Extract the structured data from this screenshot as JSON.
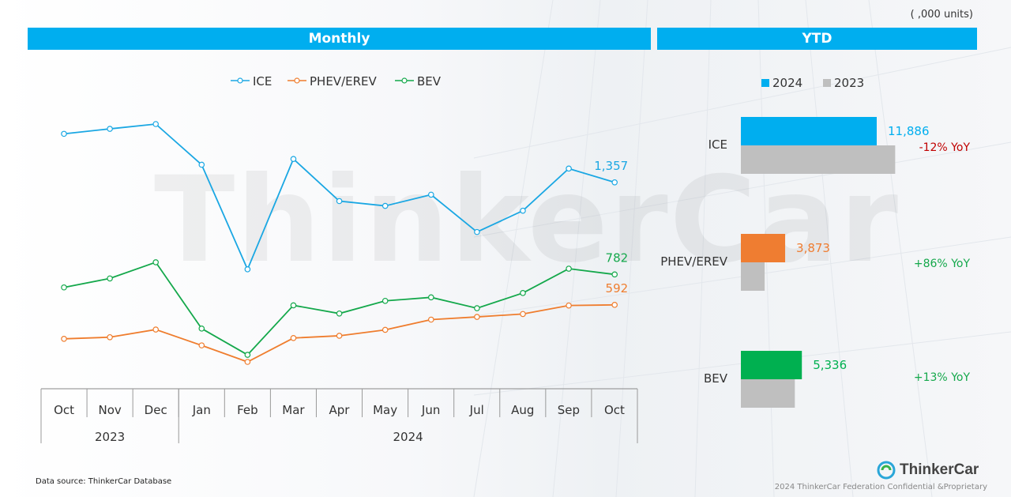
{
  "header": {
    "units": "( ,000 units)",
    "monthly_title": "Monthly",
    "ytd_title": "YTD"
  },
  "colors": {
    "ICE": "#1aa7e3",
    "PHEV/EREV": "#ef7d2e",
    "BEV": "#14a84b",
    "bar_2024_ICE": "#00aeef",
    "bar_2024_PHEV": "#ef7d31",
    "bar_2024_BEV": "#00b050",
    "bar_2023": "#bfbfbf",
    "header": "#00aeef",
    "yoy_negative": "#c00000",
    "yoy_positive": "#14a84b"
  },
  "chart_data": [
    {
      "type": "line",
      "title": "Monthly",
      "x": [
        "Oct",
        "Nov",
        "Dec",
        "Jan",
        "Feb",
        "Mar",
        "Apr",
        "May",
        "Jun",
        "Jul",
        "Aug",
        "Sep",
        "Oct"
      ],
      "year_groups": [
        {
          "label": "2023",
          "months": 3
        },
        {
          "label": "2024",
          "months": 10
        }
      ],
      "series": [
        {
          "name": "ICE",
          "values": [
            1660,
            1691,
            1721,
            1467,
            814,
            1503,
            1240,
            1210,
            1280,
            1047,
            1180,
            1443,
            1357
          ],
          "end_label": "1,357"
        },
        {
          "name": "PHEV/EREV",
          "values": [
            380,
            390,
            438,
            339,
            236,
            385,
            399,
            436,
            500,
            517,
            535,
            588,
            592
          ],
          "end_label": "592"
        },
        {
          "name": "BEV",
          "values": [
            701,
            757,
            858,
            444,
            280,
            589,
            538,
            617,
            639,
            571,
            666,
            818,
            782
          ],
          "end_label": "782"
        }
      ],
      "legend": "top-center"
    },
    {
      "type": "bar",
      "title": "YTD",
      "categories": [
        "ICE",
        "PHEV/EREV",
        "BEV"
      ],
      "series": [
        {
          "name": "2024",
          "values": [
            11886,
            3873,
            5336
          ]
        },
        {
          "name": "2023",
          "values": [
            13500,
            2080,
            4720
          ]
        }
      ],
      "value_labels": [
        "11,886",
        "3,873",
        "5,336"
      ],
      "yoy": [
        "-12% YoY",
        "+86% YoY",
        "+13% YoY"
      ],
      "legend": "top-left"
    }
  ],
  "footer": {
    "source": "Data source: ThinkerCar Database",
    "brand": "ThinkerCar",
    "copyright": "2024 ThinkerCar Federation Confidential &Proprietary",
    "watermark": "ThinkerCar"
  }
}
